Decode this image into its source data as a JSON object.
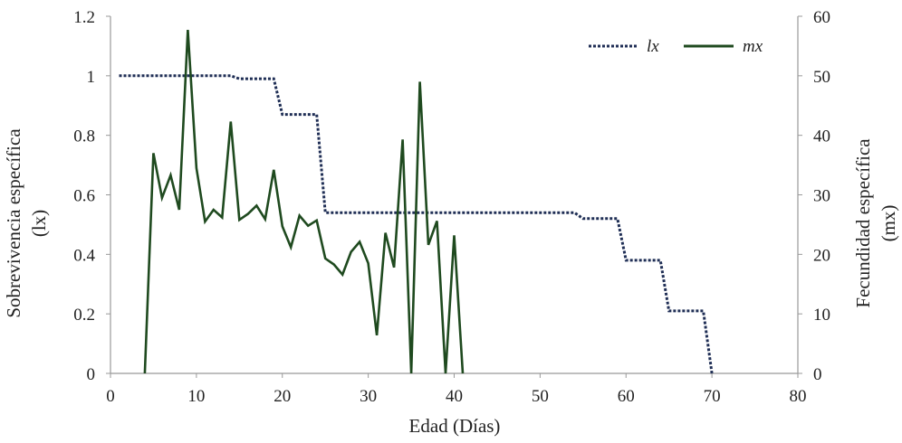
{
  "chart_data": {
    "type": "line",
    "xlabel": "Edad (Días)",
    "ylabel_left": "Sobrevivencia específica",
    "ylabel_left_symbol": "(lx)",
    "ylabel_right": "Fecundidad específica",
    "ylabel_right_symbol": "(mx)",
    "xlim": [
      0,
      80
    ],
    "x_ticks": [
      0,
      10,
      20,
      30,
      40,
      50,
      60,
      70,
      80
    ],
    "ylim_left": [
      0,
      1.2
    ],
    "y_left_ticks": [
      "0",
      "0.2",
      "0.4",
      "0.6",
      "0.8",
      "1",
      "1.2"
    ],
    "ylim_right": [
      0,
      60
    ],
    "y_right_ticks": [
      "0",
      "10",
      "20",
      "30",
      "40",
      "50",
      "60"
    ],
    "grid": false,
    "legend_position": "top-right",
    "colors": {
      "lx": "#1f2e55",
      "mx": "#1f4a1f",
      "axis": "#999999",
      "text": "#222222"
    },
    "series": [
      {
        "name": "lx",
        "axis": "left",
        "style": "dotted",
        "x": [
          1,
          14,
          15,
          19,
          20,
          24,
          25,
          54,
          55,
          59,
          60,
          64,
          65,
          69,
          70
        ],
        "y": [
          1.0,
          1.0,
          0.99,
          0.99,
          0.87,
          0.87,
          0.54,
          0.54,
          0.52,
          0.52,
          0.38,
          0.38,
          0.21,
          0.21,
          0.0
        ]
      },
      {
        "name": "mx",
        "axis": "right",
        "style": "solid",
        "x": [
          4,
          5,
          6,
          7,
          8,
          9,
          10,
          11,
          12,
          13,
          14,
          15,
          16,
          17,
          18,
          19,
          20,
          21,
          22,
          23,
          24,
          25,
          26,
          27,
          28,
          29,
          30,
          31,
          32,
          33,
          34,
          35,
          36,
          37,
          38,
          39,
          40,
          41
        ],
        "y": [
          0,
          37,
          29.5,
          33.3,
          27.5,
          57.7,
          34.5,
          25.5,
          27.5,
          26.2,
          42.3,
          25.8,
          26.8,
          28.2,
          25.9,
          34.2,
          24.7,
          21.2,
          26.5,
          24.8,
          25.7,
          19.3,
          18.3,
          16.6,
          20.4,
          22.1,
          18.5,
          6.4,
          23.6,
          17.8,
          39.3,
          0,
          49,
          21.6,
          25.6,
          0,
          23.2,
          0
        ]
      }
    ]
  }
}
